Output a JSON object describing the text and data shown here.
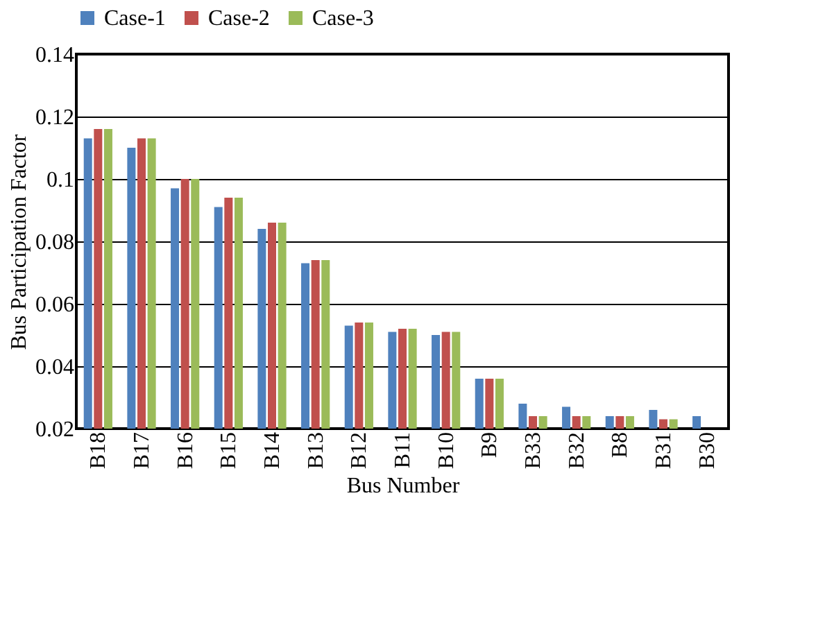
{
  "chart_data": {
    "type": "bar",
    "xlabel": "Bus Number",
    "ylabel": "Bus Participation Factor",
    "categories": [
      "B18",
      "B17",
      "B16",
      "B15",
      "B14",
      "B13",
      "B12",
      "B11",
      "B10",
      "B9",
      "B33",
      "B32",
      "B8",
      "B31",
      "B30"
    ],
    "series": [
      {
        "name": "Case-1",
        "color": "#4f81bd",
        "values": [
          0.113,
          0.11,
          0.097,
          0.091,
          0.084,
          0.073,
          0.053,
          0.051,
          0.05,
          0.036,
          0.028,
          0.027,
          0.024,
          0.026,
          0.024
        ]
      },
      {
        "name": "Case-2",
        "color": "#c0504d",
        "values": [
          0.116,
          0.113,
          0.1,
          0.094,
          0.086,
          0.074,
          0.054,
          0.052,
          0.051,
          0.036,
          0.024,
          0.024,
          0.024,
          0.023,
          null
        ]
      },
      {
        "name": "Case-3",
        "color": "#9bbb59",
        "values": [
          0.116,
          0.113,
          0.1,
          0.094,
          0.086,
          0.074,
          0.054,
          0.052,
          0.051,
          0.036,
          0.024,
          0.024,
          0.024,
          0.023,
          null
        ]
      }
    ],
    "ylim": [
      0.02,
      0.14
    ],
    "yticks": [
      0.02,
      0.04,
      0.06,
      0.08,
      {
        "value": 0.1,
        "label": "0.1"
      },
      0.12,
      0.14
    ],
    "grid": "y",
    "legend": "top"
  }
}
